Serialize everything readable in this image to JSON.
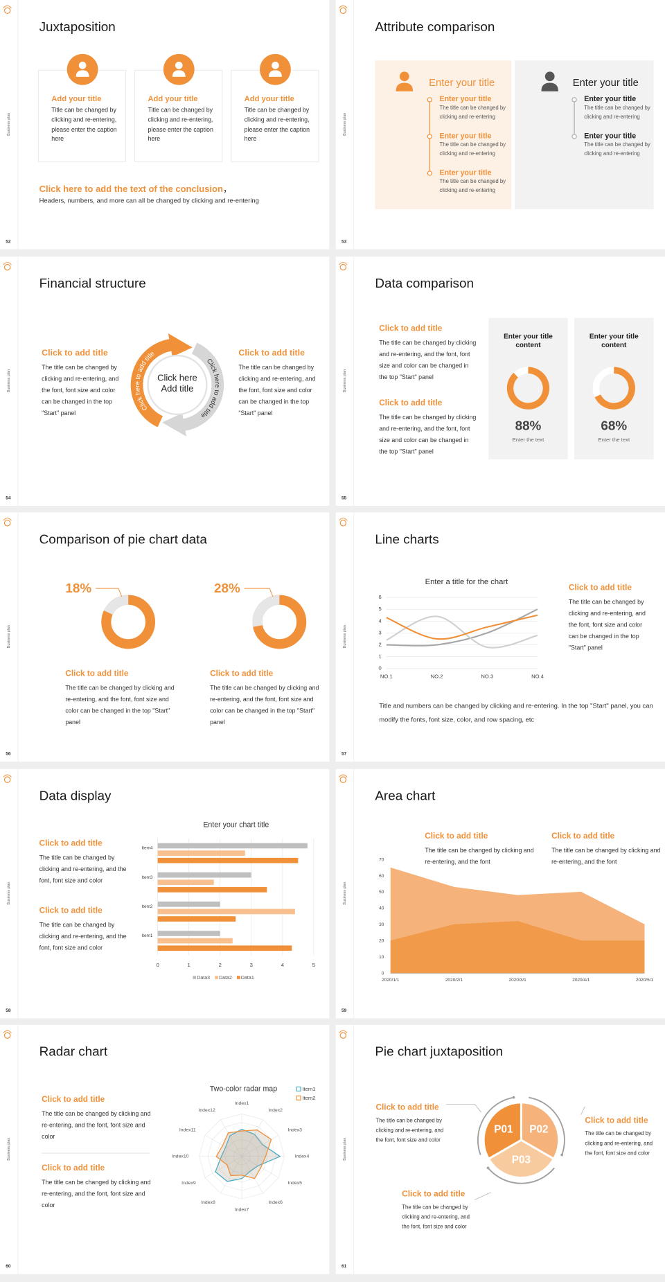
{
  "side_label": "Business plan",
  "slides": [
    {
      "number": "52",
      "title": "Juxtaposition",
      "cards": [
        {
          "title": "Add your title",
          "text": "Title can be changed by clicking and re-entering, please enter the caption here"
        },
        {
          "title": "Add your title",
          "text": "Title can be changed by clicking and re-entering, please enter the caption here"
        },
        {
          "title": "Add your title",
          "text": "Title can be changed by clicking and re-entering, please enter the caption here"
        }
      ],
      "conclusion": {
        "title": "Click here to add the text of the conclusion",
        "mark": "，",
        "text": "Headers, numbers, and more can all be changed by clicking and re-entering"
      }
    },
    {
      "number": "53",
      "title": "Attribute comparison",
      "columns": [
        {
          "heading": "Enter your title",
          "items": [
            {
              "title": "Enter your title",
              "text": "The title can be changed by clicking and re-entering"
            },
            {
              "title": "Enter your title",
              "text": "The title can be changed by clicking and re-entering"
            },
            {
              "title": "Enter your title",
              "text": "The title can be changed by clicking and re-entering"
            }
          ]
        },
        {
          "heading": "Enter your title",
          "items": [
            {
              "title": "Enter your title",
              "text": "The title can be changed by clicking and re-entering"
            },
            {
              "title": "Enter your title",
              "text": "The title can be changed by clicking and re-entering"
            }
          ]
        }
      ]
    },
    {
      "number": "54",
      "title": "Financial structure",
      "blocks": [
        {
          "title": "Click to add title",
          "text": "The title can be changed by clicking and re-entering, and the font, font size and color can be changed in the top \"Start\" panel"
        },
        {
          "title": "Click to add title",
          "text": "The title can be changed by clicking and re-entering, and the font, font size and color can be changed in the top \"Start\" panel"
        }
      ],
      "center": "Click here Add title",
      "arc_labels": [
        "Click here to add title",
        "Click here to add title"
      ]
    },
    {
      "number": "55",
      "title": "Data comparison",
      "blocks": [
        {
          "title": "Click to add title",
          "text": "The title can be changed by clicking and re-entering, and the font, font size and color can be changed in the top \"Start\" panel"
        },
        {
          "title": "Click to add title",
          "text": "The title can be changed by clicking and re-entering, and the font, font size and color can be changed in the top \"Start\" panel"
        }
      ],
      "cards": [
        {
          "title": "Enter your title content",
          "value": 88,
          "value_label": "88%",
          "caption": "Enter the text"
        },
        {
          "title": "Enter your title content",
          "value": 68,
          "value_label": "68%",
          "caption": "Enter the text"
        }
      ]
    },
    {
      "number": "56",
      "title": "Comparison of pie chart data",
      "pies": [
        {
          "value": 18,
          "value_label": "18%",
          "title": "Click to add title",
          "text": "The title can be changed by clicking and re-entering, and the font, font size and color can be changed in the top \"Start\" panel"
        },
        {
          "value": 28,
          "value_label": "28%",
          "title": "Click to add title",
          "text": "The title can be changed by clicking and re-entering, and the font, font size and color can be changed in the top \"Start\" panel"
        }
      ]
    },
    {
      "number": "57",
      "title": "Line charts",
      "chart_data": {
        "type": "line",
        "title": "Enter a title for the chart",
        "categories": [
          "NO.1",
          "NO.2",
          "NO.3",
          "NO.4"
        ],
        "series": [
          {
            "color": "#a6a6a6",
            "values": [
              2,
              2,
              3,
              5
            ]
          },
          {
            "color": "#d0d0d0",
            "values": [
              2.4,
              4.4,
              1.8,
              2.8
            ]
          },
          {
            "color": "#f0913a",
            "values": [
              4.3,
              2.5,
              3.5,
              4.5
            ]
          }
        ],
        "ylim": [
          0,
          6
        ],
        "yticks": [
          0,
          1,
          2,
          3,
          4,
          5,
          6
        ],
        "grid": true
      },
      "block": {
        "title": "Click to add title",
        "text": "The title can be changed by clicking and re-entering, and the font, font size and color can be changed in the top \"Start\" panel"
      },
      "footer": "Title and numbers can be changed by clicking and re-entering. In the top \"Start\" panel, you can modify the fonts, font size, color, and row spacing, etc"
    },
    {
      "number": "58",
      "title": "Data display",
      "blocks": [
        {
          "title": "Click to add title",
          "text": "The title can be changed by clicking and re-entering, and the font, font size and color"
        },
        {
          "title": "Click to add title",
          "text": "The title can be changed by clicking and re-entering, and the font, font size and color"
        }
      ],
      "chart_data": {
        "type": "bar",
        "orientation": "horizontal",
        "title": "Enter your chart title",
        "categories": [
          "Item1",
          "Item2",
          "Item3",
          "Item4"
        ],
        "series": [
          {
            "name": "Data3",
            "color": "#bfbfbf",
            "values": [
              2,
              2,
              3,
              4.8
            ]
          },
          {
            "name": "Data2",
            "color": "#f8c08f",
            "values": [
              2.4,
              4.4,
              1.8,
              2.8
            ]
          },
          {
            "name": "Data1",
            "color": "#f0913a",
            "values": [
              4.3,
              2.5,
              3.5,
              4.5
            ]
          }
        ],
        "xlim": [
          0,
          5
        ],
        "xticks": [
          0,
          1,
          2,
          3,
          4,
          5
        ],
        "grid": true,
        "legend": "bottom"
      }
    },
    {
      "number": "59",
      "title": "Area chart",
      "blocks": [
        {
          "title": "Click to add title",
          "text": "The title can be changed by clicking and re-entering, and the font"
        },
        {
          "title": "Click to add title",
          "text": "The title can be changed by clicking and re-entering, and the font"
        }
      ],
      "chart_data": {
        "type": "area",
        "categories": [
          "2020/1/1",
          "2020/2/1",
          "2020/3/1",
          "2020/4/1",
          "2020/5/1"
        ],
        "series": [
          {
            "color": "#f5b27a",
            "values": [
              65,
              53,
              48,
              50,
              30
            ]
          },
          {
            "color": "#f09a4a",
            "values": [
              20,
              30,
              32,
              20,
              20
            ]
          }
        ],
        "ylim": [
          0,
          70
        ],
        "yticks": [
          0,
          10,
          20,
          30,
          40,
          50,
          60,
          70
        ]
      }
    },
    {
      "number": "60",
      "title": "Radar chart",
      "blocks": [
        {
          "title": "Click to add title",
          "text": "The title can be changed by clicking and re-entering, and the font, font size and color"
        },
        {
          "title": "Click to add title",
          "text": "The title can be changed by clicking and re-entering, and the font, font size and color"
        }
      ],
      "chart_data": {
        "type": "radar",
        "title": "Two-color radar map",
        "categories": [
          "Index1",
          "Index2",
          "Index3",
          "Index4",
          "Index5",
          "Index6",
          "Index7",
          "Index8",
          "Index9",
          "Index10",
          "Index11",
          "Index12"
        ],
        "series": [
          {
            "name": "Item1",
            "color": "#4bacc6",
            "values": [
              3.2,
              3,
              2.8,
              4.5,
              2.2,
              2,
              2.6,
              3.4,
              3.6,
              2.4,
              2.2,
              2.8
            ]
          },
          {
            "name": "Item2",
            "color": "#f0913a",
            "values": [
              3,
              3.6,
              4,
              2.8,
              2.6,
              3,
              2.2,
              2.6,
              2,
              3,
              2.6,
              3.2
            ]
          }
        ],
        "rlim": [
          0,
          5
        ],
        "legend": "top-right"
      }
    },
    {
      "number": "61",
      "title": "Pie chart juxtaposition",
      "segments": [
        "P01",
        "P02",
        "P03"
      ],
      "blocks": [
        {
          "title": "Click to add title",
          "text": "The title can be changed by clicking and re-entering, and the font, font size and color"
        },
        {
          "title": "Click to add title",
          "text": "The title can be changed by clicking and re-entering, and the font, font size and color"
        },
        {
          "title": "Click to add title",
          "text": "The title can be changed by clicking and re-entering, and the font, font size and color"
        }
      ]
    }
  ]
}
